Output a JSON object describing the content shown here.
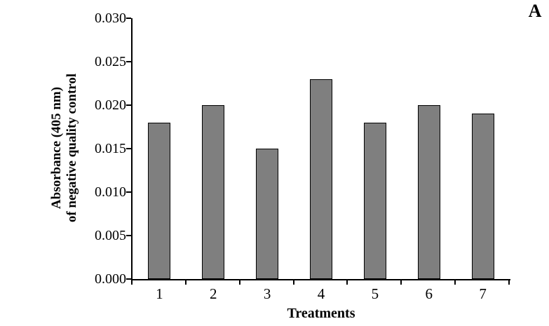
{
  "figure": {
    "panel_label": "A"
  },
  "chart_data": {
    "type": "bar",
    "title": "",
    "xlabel": "Treatments",
    "ylabel": "Absorbance (405 nm) of negative quality control",
    "ylabel_lines": [
      "Absorbance (405 nm)",
      "of negative quality control"
    ],
    "categories": [
      "1",
      "2",
      "3",
      "4",
      "5",
      "6",
      "7"
    ],
    "values": [
      0.018,
      0.02,
      0.015,
      0.023,
      0.018,
      0.02,
      0.019
    ],
    "ylim": [
      0,
      0.03
    ],
    "ytick_step": 0.005,
    "ytick_labels": [
      "0.000",
      "0.005",
      "0.010",
      "0.015",
      "0.020",
      "0.025",
      "0.030"
    ],
    "bar_fill": "#7F7F7F",
    "bar_border": "#000000",
    "grid": false,
    "legend_position": "none"
  }
}
